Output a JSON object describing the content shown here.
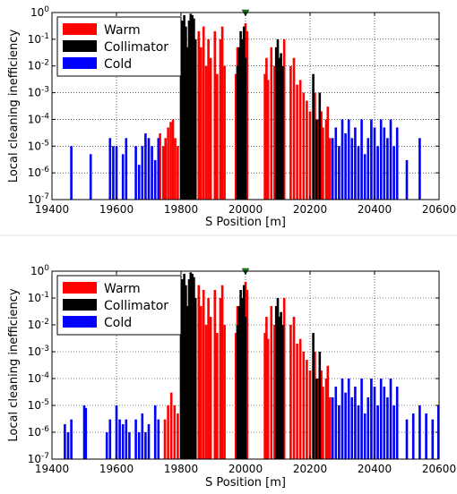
{
  "chart_data": [
    {
      "type": "bar",
      "xlabel": "S Position [m]",
      "ylabel": "Local cleaning inefficiency",
      "xlim": [
        19400,
        20600
      ],
      "ylim": [
        1e-07,
        1
      ],
      "y_scale": "log",
      "x_ticks": [
        "19400",
        "19600",
        "19800",
        "20000",
        "20200",
        "20400",
        "20600"
      ],
      "y_ticks": [
        {
          "base": "10",
          "exp": "-7"
        },
        {
          "base": "10",
          "exp": "-6"
        },
        {
          "base": "10",
          "exp": "-5"
        },
        {
          "base": "10",
          "exp": "-4"
        },
        {
          "base": "10",
          "exp": "-3"
        },
        {
          "base": "10",
          "exp": "-2"
        },
        {
          "base": "10",
          "exp": "-1"
        },
        {
          "base": "10",
          "exp": "0"
        }
      ],
      "grid": true,
      "legend_position": "top-left",
      "marker": {
        "symbol": "triangle-down",
        "x": 20000,
        "y": 1,
        "color": "#1a7a1a"
      },
      "series": [
        {
          "name": "Warm",
          "color": "#ff0000",
          "x": [
            19735,
            19745,
            19752,
            19760,
            19768,
            19775,
            19782,
            19790,
            19855,
            19862,
            19870,
            19878,
            19885,
            19892,
            19905,
            19912,
            19922,
            19928,
            19935,
            19970,
            19975,
            20000,
            20005,
            20060,
            20065,
            20070,
            20080,
            20090,
            20120,
            20140,
            20150,
            20160,
            20170,
            20180,
            20190,
            20200,
            20215,
            20225,
            20235,
            20240,
            20250,
            20255,
            20262
          ],
          "values": [
            3e-05,
            1e-05,
            2e-05,
            5e-05,
            8e-05,
            0.0001,
            2e-05,
            1e-05,
            0.2,
            0.05,
            0.3,
            0.01,
            0.1,
            0.02,
            0.2,
            0.005,
            0.1,
            0.3,
            0.01,
            0.005,
            0.05,
            0.4,
            0.2,
            0.005,
            0.02,
            0.003,
            0.05,
            0.01,
            0.1,
            0.01,
            0.02,
            0.002,
            0.003,
            0.001,
            0.0005,
            0.0002,
            0.001,
            0.0001,
            0.0002,
            5e-05,
            0.0001,
            0.0003,
            2e-05
          ]
        },
        {
          "name": "Collimator",
          "color": "#000000",
          "x": [
            19800,
            19805,
            19810,
            19815,
            19820,
            19825,
            19830,
            19835,
            19840,
            19845,
            19975,
            19980,
            19985,
            19990,
            19995,
            20000,
            20095,
            20100,
            20105,
            20110,
            20115,
            20210,
            20220,
            20230
          ],
          "values": [
            0.01,
            0.5,
            0.8,
            0.3,
            0.05,
            0.5,
            0.9,
            0.8,
            0.6,
            0.1,
            0.01,
            0.05,
            0.2,
            0.1,
            0.3,
            0.02,
            0.05,
            0.1,
            0.02,
            0.03,
            0.01,
            0.005,
            0.0001,
            0.001
          ]
        },
        {
          "name": "Cold",
          "color": "#0000ff",
          "x": [
            19460,
            19520,
            19580,
            19590,
            19600,
            19620,
            19630,
            19660,
            19670,
            19680,
            19690,
            19700,
            19710,
            19720,
            19730,
            20270,
            20280,
            20290,
            20300,
            20310,
            20320,
            20330,
            20340,
            20350,
            20360,
            20370,
            20380,
            20390,
            20400,
            20410,
            20420,
            20430,
            20440,
            20450,
            20460,
            20470,
            20500,
            20540
          ],
          "values": [
            1e-05,
            5e-06,
            2e-05,
            1e-05,
            1e-05,
            5e-06,
            2e-05,
            1e-05,
            2e-06,
            1e-05,
            3e-05,
            2e-05,
            1e-05,
            3e-06,
            2e-05,
            2e-05,
            5e-05,
            1e-05,
            0.0001,
            3e-05,
            0.0001,
            2e-05,
            5e-05,
            1e-05,
            0.0001,
            5e-06,
            2e-05,
            0.0001,
            5e-05,
            1e-05,
            0.0001,
            5e-05,
            2e-05,
            0.0001,
            1e-05,
            5e-05,
            3e-06,
            2e-05
          ]
        }
      ]
    },
    {
      "type": "bar",
      "xlabel": "S Position [m]",
      "ylabel": "Local cleaning inefficiency",
      "xlim": [
        19400,
        20600
      ],
      "ylim": [
        1e-07,
        1
      ],
      "y_scale": "log",
      "x_ticks": [
        "19400",
        "19600",
        "19800",
        "20000",
        "20200",
        "20400",
        "20600"
      ],
      "y_ticks": [
        {
          "base": "10",
          "exp": "-7"
        },
        {
          "base": "10",
          "exp": "-6"
        },
        {
          "base": "10",
          "exp": "-5"
        },
        {
          "base": "10",
          "exp": "-4"
        },
        {
          "base": "10",
          "exp": "-3"
        },
        {
          "base": "10",
          "exp": "-2"
        },
        {
          "base": "10",
          "exp": "-1"
        },
        {
          "base": "10",
          "exp": "0"
        }
      ],
      "grid": true,
      "legend_position": "top-left",
      "marker": {
        "symbol": "triangle-down",
        "x": 20000,
        "y": 1,
        "color": "#1a7a1a"
      },
      "series": [
        {
          "name": "Warm",
          "color": "#ff0000",
          "x": [
            19750,
            19760,
            19770,
            19780,
            19790,
            19855,
            19862,
            19870,
            19878,
            19885,
            19892,
            19905,
            19912,
            19922,
            19928,
            19935,
            19970,
            19975,
            20000,
            20005,
            20060,
            20065,
            20070,
            20080,
            20090,
            20120,
            20140,
            20150,
            20160,
            20170,
            20180,
            20190,
            20200,
            20215,
            20225,
            20235,
            20240,
            20250,
            20255,
            20262
          ],
          "values": [
            3e-06,
            1e-05,
            3e-05,
            1e-05,
            5e-06,
            0.3,
            0.05,
            0.2,
            0.01,
            0.1,
            0.02,
            0.2,
            0.005,
            0.1,
            0.3,
            0.01,
            0.005,
            0.05,
            0.4,
            0.2,
            0.005,
            0.02,
            0.003,
            0.05,
            0.01,
            0.1,
            0.01,
            0.02,
            0.002,
            0.003,
            0.001,
            0.0005,
            0.0002,
            0.001,
            0.0001,
            0.0002,
            5e-05,
            0.0001,
            0.0003,
            2e-05
          ]
        },
        {
          "name": "Collimator",
          "color": "#000000",
          "x": [
            19800,
            19805,
            19810,
            19815,
            19820,
            19825,
            19830,
            19835,
            19840,
            19845,
            19975,
            19980,
            19985,
            19990,
            19995,
            20000,
            20095,
            20100,
            20105,
            20110,
            20115,
            20210,
            20220,
            20230
          ],
          "values": [
            0.01,
            0.5,
            0.8,
            0.3,
            0.05,
            0.5,
            0.9,
            0.8,
            0.6,
            0.1,
            0.01,
            0.05,
            0.2,
            0.1,
            0.3,
            0.02,
            0.05,
            0.1,
            0.02,
            0.03,
            0.01,
            0.005,
            0.0001,
            0.001
          ]
        },
        {
          "name": "Cold",
          "color": "#0000ff",
          "x": [
            19440,
            19450,
            19460,
            19500,
            19505,
            19570,
            19580,
            19600,
            19610,
            19620,
            19630,
            19640,
            19660,
            19670,
            19680,
            19690,
            19700,
            19720,
            19730,
            20270,
            20280,
            20290,
            20300,
            20310,
            20320,
            20330,
            20340,
            20350,
            20360,
            20370,
            20380,
            20390,
            20400,
            20410,
            20420,
            20430,
            20440,
            20450,
            20460,
            20470,
            20500,
            20520,
            20540,
            20560,
            20580,
            20598
          ],
          "values": [
            2e-06,
            1e-06,
            3e-06,
            1e-05,
            8e-06,
            1e-06,
            3e-06,
            1e-05,
            3e-06,
            2e-06,
            3e-06,
            1e-06,
            3e-06,
            1e-06,
            5e-06,
            1e-06,
            2e-06,
            1e-05,
            3e-06,
            2e-05,
            5e-05,
            1e-05,
            0.0001,
            3e-05,
            0.0001,
            2e-05,
            5e-05,
            1e-05,
            0.0001,
            5e-06,
            2e-05,
            0.0001,
            5e-05,
            1e-05,
            0.0001,
            5e-05,
            2e-05,
            0.0001,
            1e-05,
            5e-05,
            3e-06,
            5e-06,
            1e-05,
            5e-06,
            3e-06,
            1e-05
          ]
        }
      ]
    }
  ]
}
